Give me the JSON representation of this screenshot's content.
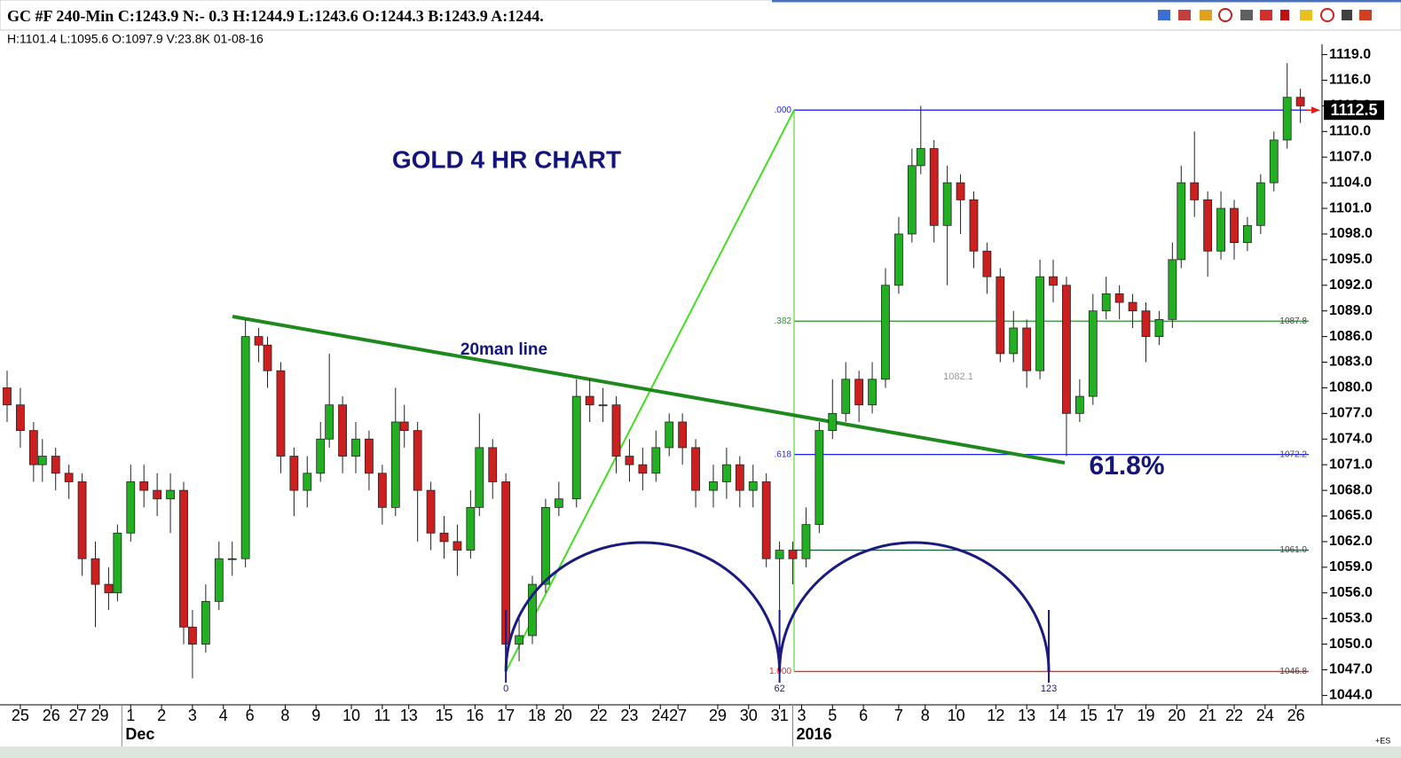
{
  "header": {
    "title": "GC #F 240-Min C:1243.9 N:- 0.3 H:1244.9 L:1243.6 O:1244.3 B:1243.9 A:1244.",
    "bar_info": "H:1101.4 L:1095.6 O:1097.9 V:23.8K 01-08-16",
    "corner_note": "+ES"
  },
  "chart_data": {
    "type": "candlestick",
    "title": "GOLD 4 HR CHART",
    "up_color": "#22b022",
    "down_color": "#cc2020",
    "x": [
      -113,
      -110,
      -107,
      -105,
      -102,
      -99,
      -96,
      -93,
      -90,
      -88,
      -85,
      -82,
      -79,
      -76,
      -73,
      -71,
      -68,
      -65,
      -62,
      -59,
      -56,
      -54,
      -51,
      -48,
      -45,
      -42,
      -40,
      -37,
      -34,
      -31,
      -28,
      -25,
      -23,
      -20,
      -17,
      -14,
      -11,
      -8,
      -6,
      -3,
      0,
      3,
      6,
      9,
      12,
      16,
      19,
      22,
      25,
      28,
      31,
      34,
      37,
      40,
      43,
      47,
      50,
      53,
      56,
      59,
      62,
      65,
      68,
      71,
      74,
      77,
      80,
      83,
      86,
      89,
      92,
      94,
      97,
      100,
      103,
      106,
      109,
      112,
      115,
      118,
      121,
      124,
      127,
      130,
      133,
      136,
      139,
      142,
      145,
      148,
      151,
      153,
      156,
      159,
      162,
      165,
      168,
      171,
      174,
      177,
      180
    ],
    "open": [
      1080,
      1078,
      1075,
      1071,
      1072,
      1070,
      1069,
      1060,
      1057,
      1056,
      1063,
      1069,
      1068,
      1067,
      1068,
      1052,
      1050,
      1055,
      1060,
      1060,
      1086,
      1085,
      1082,
      1072,
      1068,
      1070,
      1074,
      1078,
      1072,
      1074,
      1070,
      1066,
      1076,
      1075,
      1068,
      1063,
      1062,
      1061,
      1066,
      1073,
      1069,
      1050,
      1051,
      1057,
      1066,
      1067,
      1079,
      1078,
      1078,
      1072,
      1071,
      1070,
      1073,
      1076,
      1073,
      1068,
      1069,
      1071,
      1068,
      1069,
      1060,
      1061,
      1060,
      1064,
      1075,
      1077,
      1081,
      1078,
      1081,
      1092,
      1098,
      1106,
      1108,
      1099,
      1104,
      1102,
      1096,
      1093,
      1084,
      1087,
      1082,
      1093,
      1092,
      1077,
      1079,
      1089,
      1091,
      1090,
      1089,
      1086,
      1088,
      1095,
      1104,
      1102,
      1096,
      1101,
      1097,
      1099,
      1104,
      1109,
      1114
    ],
    "high": [
      1082,
      1080,
      1076,
      1074,
      1073,
      1071,
      1070,
      1062,
      1059,
      1064,
      1071,
      1071,
      1070,
      1070,
      1069,
      1054,
      1057,
      1062,
      1062,
      1088,
      1087,
      1086,
      1083,
      1073,
      1072,
      1076,
      1084,
      1079,
      1076,
      1075,
      1071,
      1080,
      1078,
      1076,
      1069,
      1065,
      1064,
      1068,
      1077,
      1074,
      1070,
      1053,
      1058,
      1067,
      1069,
      1081,
      1081,
      1080,
      1079,
      1074,
      1073,
      1075,
      1077,
      1077,
      1074,
      1071,
      1073,
      1072,
      1071,
      1070,
      1062,
      1062,
      1066,
      1076,
      1081,
      1083,
      1082,
      1083,
      1094,
      1100,
      1108,
      1113,
      1109,
      1106,
      1105,
      1103,
      1097,
      1094,
      1089,
      1088,
      1095,
      1095,
      1093,
      1081,
      1091,
      1093,
      1092,
      1091,
      1090,
      1089,
      1097,
      1106,
      1110,
      1103,
      1103,
      1102,
      1100,
      1105,
      1110,
      1118,
      1115
    ],
    "low": [
      1076,
      1073,
      1069,
      1069,
      1068,
      1067,
      1058,
      1052,
      1054,
      1055,
      1062,
      1066,
      1065,
      1063,
      1050,
      1046,
      1049,
      1054,
      1058,
      1059,
      1083,
      1080,
      1070,
      1065,
      1066,
      1069,
      1073,
      1070,
      1070,
      1068,
      1064,
      1065,
      1073,
      1062,
      1061,
      1060,
      1058,
      1060,
      1065,
      1067,
      1047,
      1048,
      1050,
      1056,
      1065,
      1066,
      1076,
      1076,
      1070,
      1069,
      1068,
      1069,
      1072,
      1071,
      1066,
      1066,
      1067,
      1066,
      1066,
      1059,
      1047,
      1057,
      1059,
      1063,
      1074,
      1076,
      1076,
      1077,
      1080,
      1091,
      1097,
      1105,
      1097,
      1092,
      1098,
      1094,
      1091,
      1083,
      1083,
      1080,
      1081,
      1090,
      1072,
      1076,
      1078,
      1088,
      1088,
      1087,
      1083,
      1085,
      1087,
      1094,
      1100,
      1093,
      1095,
      1095,
      1096,
      1098,
      1103,
      1108,
      1111
    ],
    "close": [
      1078,
      1075,
      1071,
      1072,
      1070,
      1069,
      1060,
      1057,
      1056,
      1063,
      1069,
      1068,
      1067,
      1068,
      1052,
      1050,
      1055,
      1060,
      1060,
      1086,
      1085,
      1082,
      1072,
      1068,
      1070,
      1074,
      1078,
      1072,
      1074,
      1070,
      1066,
      1076,
      1075,
      1068,
      1063,
      1062,
      1061,
      1066,
      1073,
      1069,
      1050,
      1051,
      1057,
      1066,
      1067,
      1079,
      1078,
      1078,
      1072,
      1071,
      1070,
      1073,
      1076,
      1073,
      1068,
      1069,
      1071,
      1068,
      1069,
      1060,
      1061,
      1060,
      1064,
      1075,
      1077,
      1081,
      1078,
      1081,
      1092,
      1098,
      1106,
      1108,
      1099,
      1104,
      1102,
      1096,
      1093,
      1084,
      1087,
      1082,
      1093,
      1092,
      1077,
      1079,
      1089,
      1091,
      1090,
      1089,
      1086,
      1088,
      1095,
      1104,
      1102,
      1096,
      1101,
      1097,
      1099,
      1104,
      1109,
      1114,
      1113
    ],
    "xlim": [
      -113,
      184.5
    ],
    "ylim": [
      1042.9,
      1120.2
    ],
    "yticks": [
      {
        "value": 1044,
        "label": "1044.0"
      },
      {
        "value": 1047,
        "label": "1047.0"
      },
      {
        "value": 1050,
        "label": "1050.0"
      },
      {
        "value": 1053,
        "label": "1053.0"
      },
      {
        "value": 1056,
        "label": "1056.0"
      },
      {
        "value": 1059,
        "label": "1059.0"
      },
      {
        "value": 1062,
        "label": "1062.0"
      },
      {
        "value": 1065,
        "label": "1065.0"
      },
      {
        "value": 1068,
        "label": "1068.0"
      },
      {
        "value": 1071,
        "label": "1071.0"
      },
      {
        "value": 1074,
        "label": "1074.0"
      },
      {
        "value": 1077,
        "label": "1077.0"
      },
      {
        "value": 1080,
        "label": "1080.0"
      },
      {
        "value": 1083,
        "label": "1083.0"
      },
      {
        "value": 1086,
        "label": "1086.0"
      },
      {
        "value": 1089,
        "label": "1089.0"
      },
      {
        "value": 1092,
        "label": "1092.0"
      },
      {
        "value": 1095,
        "label": "1095.0"
      },
      {
        "value": 1098,
        "label": "1098.0"
      },
      {
        "value": 1101,
        "label": "1101.0"
      },
      {
        "value": 1104,
        "label": "1104.0"
      },
      {
        "value": 1107,
        "label": "1107.0"
      },
      {
        "value": 1110,
        "label": "1110.0"
      },
      {
        "value": 1113,
        "label": "1113.0"
      },
      {
        "value": 1116,
        "label": "1116.0"
      },
      {
        "value": 1119,
        "label": "1119.0"
      }
    ],
    "xticks": [
      {
        "value": -110,
        "label": "25"
      },
      {
        "value": -103,
        "label": "26"
      },
      {
        "value": -97,
        "label": "27"
      },
      {
        "value": -92,
        "label": "29"
      },
      {
        "value": -85,
        "label": "1"
      },
      {
        "value": -78,
        "label": "2"
      },
      {
        "value": -71,
        "label": "3"
      },
      {
        "value": -64,
        "label": "4"
      },
      {
        "value": -58,
        "label": "6"
      },
      {
        "value": -50,
        "label": "8"
      },
      {
        "value": -43,
        "label": "9"
      },
      {
        "value": -35,
        "label": "10"
      },
      {
        "value": -28,
        "label": "11"
      },
      {
        "value": -22,
        "label": "13"
      },
      {
        "value": -14,
        "label": "15"
      },
      {
        "value": -7,
        "label": "16"
      },
      {
        "value": 0,
        "label": "17"
      },
      {
        "value": 7,
        "label": "18"
      },
      {
        "value": 13,
        "label": "20"
      },
      {
        "value": 21,
        "label": "22"
      },
      {
        "value": 28,
        "label": "23"
      },
      {
        "value": 35,
        "label": "24"
      },
      {
        "value": 39,
        "label": "27"
      },
      {
        "value": 48,
        "label": "29"
      },
      {
        "value": 55,
        "label": "30"
      },
      {
        "value": 62,
        "label": "31"
      },
      {
        "value": 67,
        "label": "3"
      },
      {
        "value": 74,
        "label": "5"
      },
      {
        "value": 81,
        "label": "6"
      },
      {
        "value": 89,
        "label": "7"
      },
      {
        "value": 95,
        "label": "8"
      },
      {
        "value": 102,
        "label": "10"
      },
      {
        "value": 111,
        "label": "12"
      },
      {
        "value": 118,
        "label": "13"
      },
      {
        "value": 125,
        "label": "14"
      },
      {
        "value": 132,
        "label": "15"
      },
      {
        "value": 138,
        "label": "17"
      },
      {
        "value": 145,
        "label": "19"
      },
      {
        "value": 152,
        "label": "20"
      },
      {
        "value": 159,
        "label": "21"
      },
      {
        "value": 165,
        "label": "22"
      },
      {
        "value": 172,
        "label": "24"
      },
      {
        "value": 179,
        "label": "26"
      }
    ],
    "month_ticks": [
      {
        "value": -87,
        "label": "Dec"
      },
      {
        "value": 65,
        "label": "2016"
      }
    ],
    "last_price": 1112.5,
    "fib_levels": [
      {
        "ratio": {
          "value": 0,
          "label": ".000"
        },
        "color": "#2020ff"
      },
      {
        "ratio": {
          "value": 0.382,
          "label": ".382"
        },
        "price": 1087.8,
        "color": "#2e8b2e"
      },
      {
        "ratio": {
          "value": 0.618,
          "label": ".618"
        },
        "price": 1072.2,
        "color": "#2020ff"
      },
      {
        "price": {
          "value": 1061,
          "label": "1061.0"
        },
        "color": "#1f5f3f"
      },
      {
        "ratio": {
          "value": 1,
          "label": "1.000"
        },
        "price": 1046.8,
        "color": "#ff2020"
      }
    ],
    "cycle_points": [
      0,
      62,
      123
    ],
    "price_note": 1082.1,
    "annotations": [
      "20man line",
      "61.8%"
    ]
  }
}
